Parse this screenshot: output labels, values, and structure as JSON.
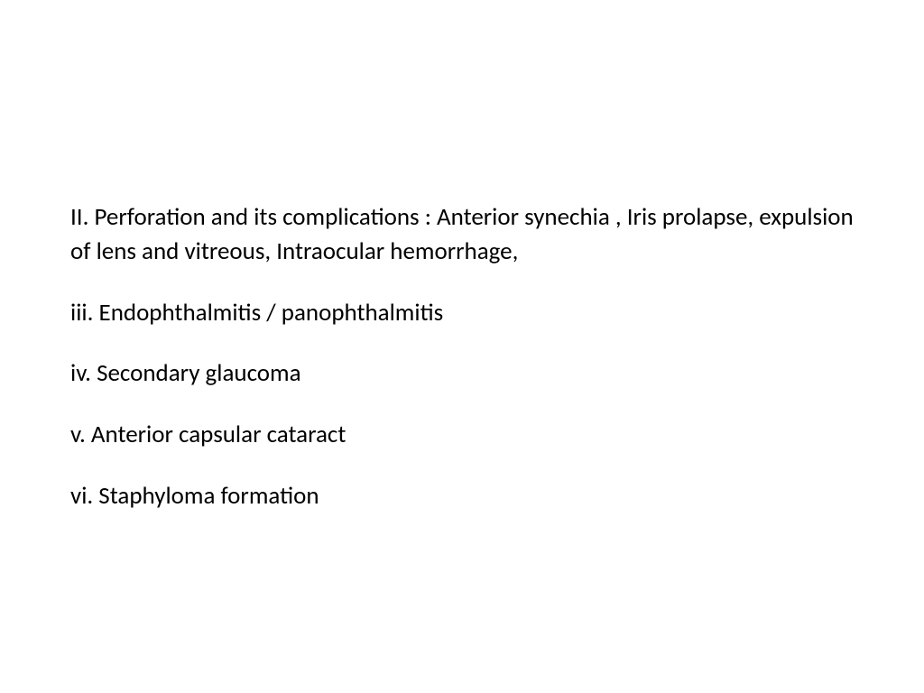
{
  "document": {
    "items": [
      {
        "text": "II. Perforation and its complications : Anterior synechia , Iris prolapse, expulsion of lens and vitreous, Intraocular hemorrhage,"
      },
      {
        "text": "iii. Endophthalmitis / panophthalmitis"
      },
      {
        "text": "iv. Secondary glaucoma"
      },
      {
        "text": "v. Anterior capsular cataract"
      },
      {
        "text": "vi. Staphyloma formation"
      }
    ],
    "styling": {
      "background_color": "#ffffff",
      "text_color": "#000000",
      "font_family": "Calibri",
      "font_size": 27,
      "line_spacing": 30
    }
  }
}
